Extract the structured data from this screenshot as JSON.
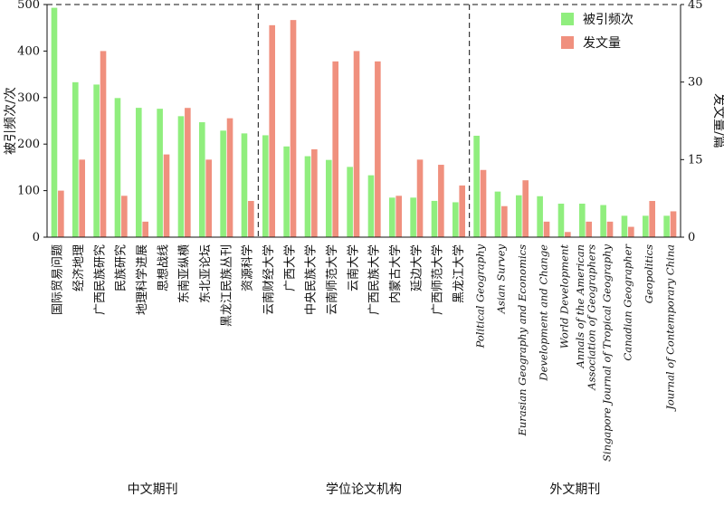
{
  "chart_data": {
    "type": "bar",
    "categories": [
      "国际贸易问题",
      "经济地理",
      "广西民族研究",
      "民族研究",
      "地理科学进展",
      "思想战线",
      "东南亚纵横",
      "东北亚论坛",
      "黑龙江民族丛刊",
      "资源科学",
      "云南财经大学",
      "广西大学",
      "中央民族大学",
      "云南师范大学",
      "云南大学",
      "广西民族大学",
      "内蒙古大学",
      "延边大学",
      "广西师范大学",
      "黑龙江大学",
      "Political Geography",
      "Asian Survey",
      "Eurasian Geography and Economics",
      "Development and Change",
      "World Development",
      "Annals of the American Association of Geographers",
      "Singapore Journal of Tropical Geography",
      "Canadian Geographer",
      "Geopolitics",
      "Journal of Contemporary China"
    ],
    "category_lines": [
      [
        "国际贸易问题"
      ],
      [
        "经济地理"
      ],
      [
        "广西民族研究"
      ],
      [
        "民族研究"
      ],
      [
        "地理科学进展"
      ],
      [
        "思想战线"
      ],
      [
        "东南亚纵横"
      ],
      [
        "东北亚论坛"
      ],
      [
        "黑龙江民族丛刊"
      ],
      [
        "资源科学"
      ],
      [
        "云南财经大学"
      ],
      [
        "广西大学"
      ],
      [
        "中央民族大学"
      ],
      [
        "云南师范大学"
      ],
      [
        "云南大学"
      ],
      [
        "广西民族大学"
      ],
      [
        "内蒙古大学"
      ],
      [
        "延边大学"
      ],
      [
        "广西师范大学"
      ],
      [
        "黑龙江大学"
      ],
      [
        "Political Geography"
      ],
      [
        "Asian Survey"
      ],
      [
        "Eurasian Geography and Economics"
      ],
      [
        "Development and Change"
      ],
      [
        "World Development"
      ],
      [
        "Annals of the American",
        "Association of Geographers"
      ],
      [
        "Singapore Journal of Tropical Geography"
      ],
      [
        "Canadian Geographer"
      ],
      [
        "Geopolitics"
      ],
      [
        "Journal of Contemporary China"
      ]
    ],
    "groups": [
      {
        "label": "中文期刊",
        "start": 0,
        "end": 9
      },
      {
        "label": "学位论文机构",
        "start": 10,
        "end": 19
      },
      {
        "label": "外文期刊",
        "start": 20,
        "end": 29
      }
    ],
    "series": [
      {
        "name": "被引频次",
        "axis": "left",
        "color": "#90EE7E",
        "values": [
          493,
          333,
          328,
          299,
          278,
          276,
          260,
          247,
          229,
          223,
          219,
          195,
          174,
          166,
          151,
          133,
          85,
          85,
          78,
          75,
          218,
          98,
          90,
          88,
          72,
          72,
          69,
          46,
          46,
          46
        ]
      },
      {
        "name": "发文量",
        "axis": "right",
        "color": "#F0907E",
        "values": [
          9,
          15,
          36,
          8,
          3,
          16,
          25,
          15,
          23,
          7,
          41,
          42,
          17,
          34,
          36,
          34,
          8,
          15,
          14,
          10,
          13,
          6,
          11,
          3,
          1,
          3,
          3,
          2,
          7,
          5
        ]
      }
    ],
    "ylabel": "被引频次/次",
    "y2label": "发文量/篇",
    "ylim": [
      0,
      500
    ],
    "y2lim": [
      0,
      45
    ],
    "yticks": [
      0,
      100,
      200,
      300,
      400,
      500
    ],
    "y2ticks": [
      0,
      15,
      30,
      45
    ],
    "legend_position": "top-right",
    "grid": false
  }
}
